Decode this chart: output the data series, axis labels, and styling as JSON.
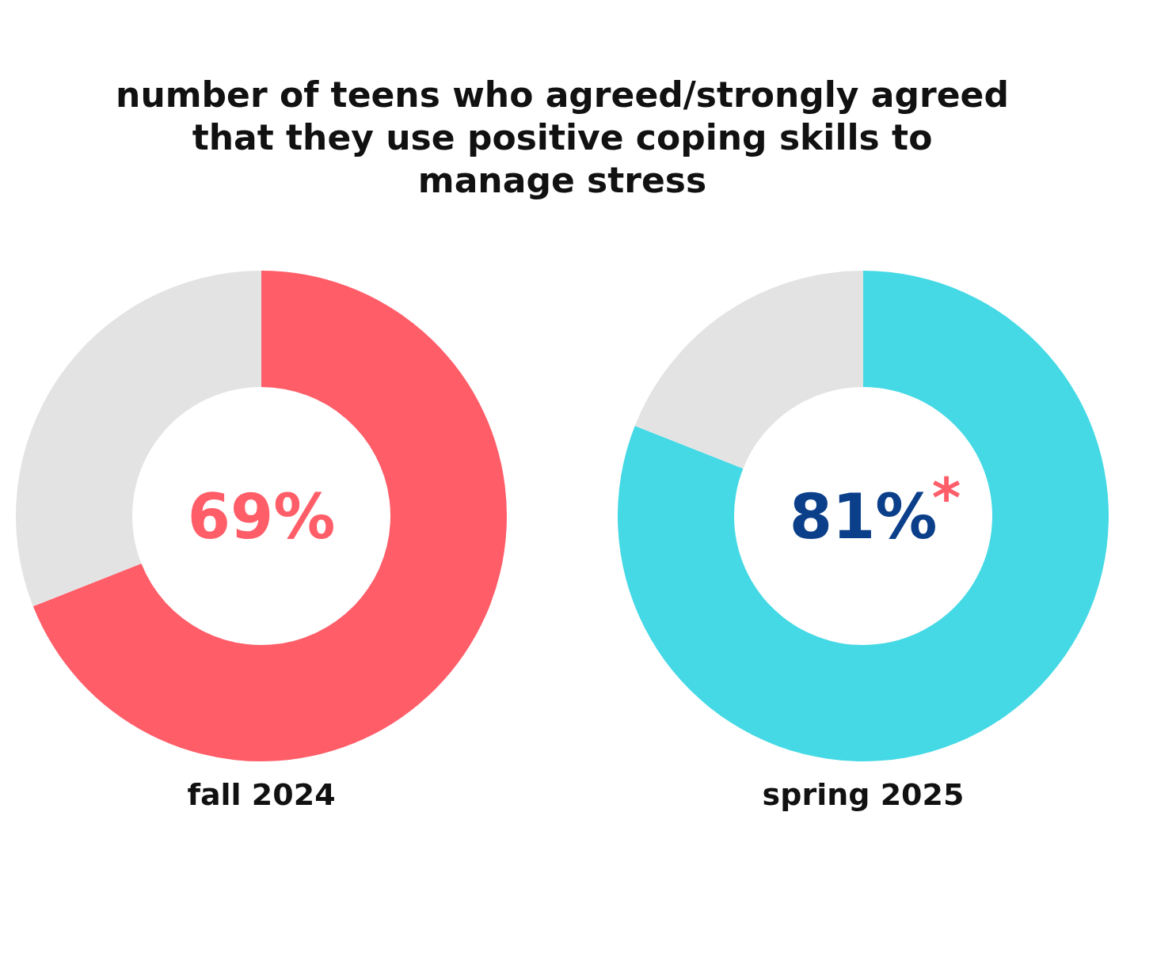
{
  "chart_data": [
    {
      "type": "donut",
      "title": "number of teens who agreed/strongly agreed that they use positive coping skills to manage stress",
      "xlabel": "fall 2024",
      "categories": [
        null,
        null
      ],
      "values": [
        69,
        31
      ],
      "colors": [
        "#ff5e69",
        "#e3e3e3"
      ],
      "value_labels": [
        "69%",
        null
      ]
    },
    {
      "type": "donut",
      "xlabel": "spring 2025",
      "categories": [
        null,
        null
      ],
      "values": [
        81,
        19
      ],
      "colors": [
        "#45d9e5",
        "#e3e3e3"
      ],
      "value_labels": [
        "81%",
        null
      ],
      "annotations": [
        "*"
      ]
    }
  ]
}
